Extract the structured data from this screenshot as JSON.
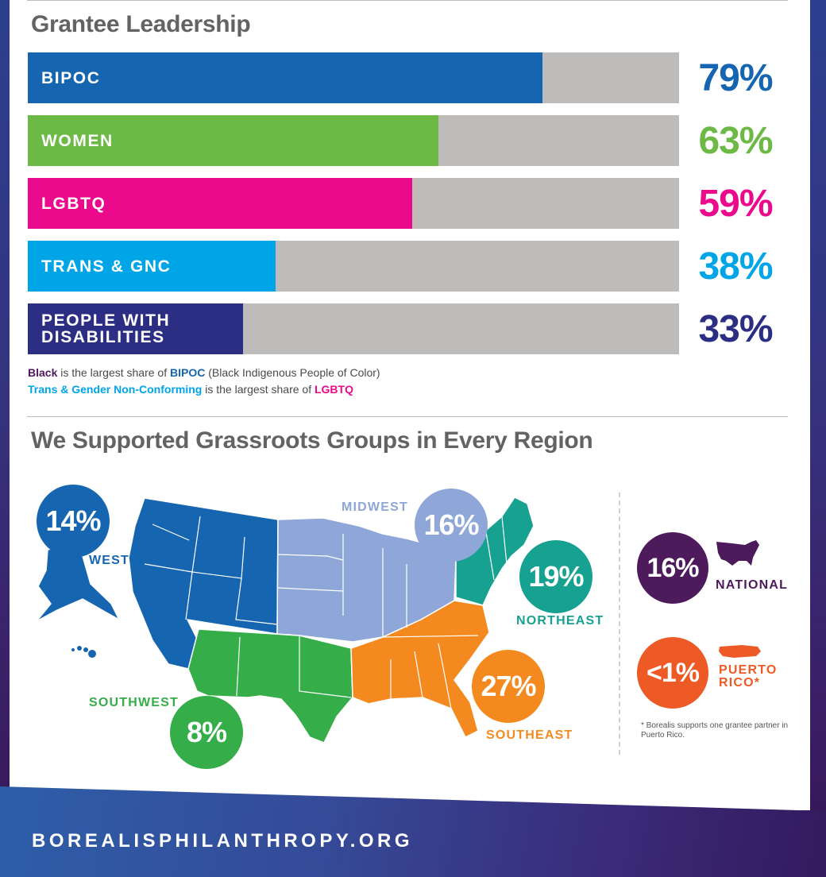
{
  "leadership": {
    "title": "Grantee Leadership",
    "notes": {
      "line1": {
        "a": "Black",
        "b": " is the largest share of ",
        "c": "BIPOC",
        "d": " (Black Indigenous People of Color)"
      },
      "line2": {
        "a": "Trans & Gender Non-Conforming",
        "b": " is the largest share of ",
        "c": "LGBTQ"
      }
    }
  },
  "chart_data": {
    "type": "bar",
    "orientation": "horizontal",
    "title": "Grantee Leadership",
    "categories": [
      "BIPOC",
      "WOMEN",
      "LGBTQ",
      "TRANS & GNC",
      "PEOPLE WITH DISABILITIES"
    ],
    "values": [
      79,
      63,
      59,
      38,
      33
    ],
    "value_labels": [
      "79%",
      "63%",
      "59%",
      "38%",
      "33%"
    ],
    "unit": "%",
    "xlim": [
      0,
      100
    ],
    "colors": [
      "#1565b1",
      "#6cb945",
      "#ea0a8b",
      "#00a5e8",
      "#2b2e83"
    ],
    "track_color": "#bdbcbb",
    "grid": false
  },
  "regions": {
    "title": "We Supported Grassroots Groups in Every Region",
    "west": {
      "label": "WEST",
      "pct": "14%",
      "color": "#1565b1"
    },
    "midwest": {
      "label": "MIDWEST",
      "pct": "16%",
      "color": "#8ea7d8"
    },
    "northeast": {
      "label": "NORTHEAST",
      "pct": "19%",
      "color": "#17a190"
    },
    "southeast": {
      "label": "SOUTHEAST",
      "pct": "27%",
      "color": "#f48a1f"
    },
    "southwest": {
      "label": "SOUTHWEST",
      "pct": "8%",
      "color": "#35ad48"
    },
    "national": {
      "label": "NATIONAL",
      "pct": "16%",
      "color": "#4d1a5c"
    },
    "puerto_rico": {
      "label_line1": "PUERTO",
      "label_line2": "RICO*",
      "pct": "<1%",
      "color": "#ee5a26"
    },
    "footnote": "* Borealis supports one grantee partner in Puerto Rico."
  },
  "footer": {
    "url": "BOREALISPHILANTHROPY.ORG"
  }
}
